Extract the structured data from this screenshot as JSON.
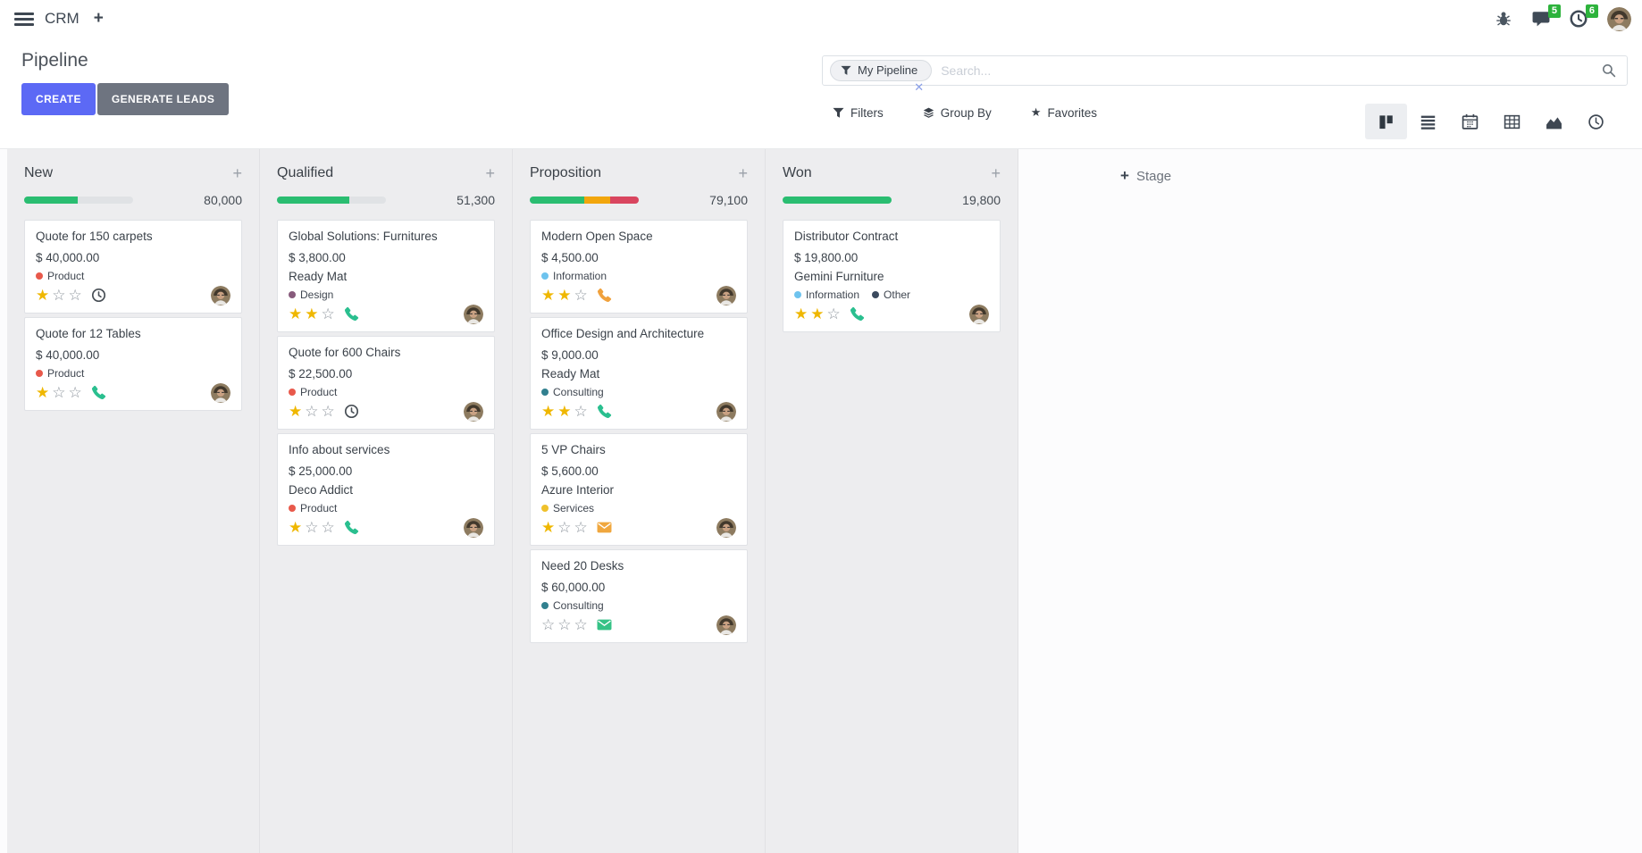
{
  "navbar": {
    "app_name": "CRM",
    "messages_badge": "5",
    "activities_badge": "6"
  },
  "control_panel": {
    "title": "Pipeline",
    "create_button": "CREATE",
    "generate_leads_button": "GENERATE LEADS",
    "search": {
      "facet_label": "My Pipeline",
      "placeholder": "Search...",
      "remove_facet_icon": "✕"
    },
    "filters_label": "Filters",
    "group_by_label": "Group By",
    "favorites_label": "Favorites"
  },
  "view_switcher": [
    "kanban",
    "list",
    "calendar",
    "pivot",
    "graph",
    "activity"
  ],
  "board": {
    "add_stage_label": "Stage",
    "columns": [
      {
        "title": "New",
        "counter": "80,000",
        "progress_segments": [
          {
            "color": "#2abd71",
            "pct": 49
          }
        ],
        "cards": [
          {
            "title": "Quote for 150 carpets",
            "amount": "$ 40,000.00",
            "tags": [
              {
                "label": "Product",
                "color": "#e8594b"
              }
            ],
            "stars": 1,
            "activity": {
              "type": "clock",
              "color": "#495057"
            }
          },
          {
            "title": "Quote for 12 Tables",
            "amount": "$ 40,000.00",
            "tags": [
              {
                "label": "Product",
                "color": "#e8594b"
              }
            ],
            "stars": 1,
            "activity": {
              "type": "phone",
              "color": "#2abf8f"
            }
          }
        ]
      },
      {
        "title": "Qualified",
        "counter": "51,300",
        "progress_segments": [
          {
            "color": "#2abd71",
            "pct": 66
          }
        ],
        "cards": [
          {
            "title": "Global Solutions: Furnitures",
            "amount": "$ 3,800.00",
            "partner": "Ready Mat",
            "tags": [
              {
                "label": "Design",
                "color": "#875a7b"
              }
            ],
            "stars": 2,
            "activity": {
              "type": "phone",
              "color": "#2abf8f"
            }
          },
          {
            "title": "Quote for 600 Chairs",
            "amount": "$ 22,500.00",
            "tags": [
              {
                "label": "Product",
                "color": "#e8594b"
              }
            ],
            "stars": 1,
            "activity": {
              "type": "clock",
              "color": "#495057"
            }
          },
          {
            "title": "Info about services",
            "amount": "$ 25,000.00",
            "partner": "Deco Addict",
            "tags": [
              {
                "label": "Product",
                "color": "#e8594b"
              }
            ],
            "stars": 1,
            "activity": {
              "type": "phone",
              "color": "#2abf8f"
            }
          }
        ]
      },
      {
        "title": "Proposition",
        "counter": "79,100",
        "progress_segments": [
          {
            "color": "#2abd71",
            "pct": 50
          },
          {
            "color": "#f2a60d",
            "pct": 24
          },
          {
            "color": "#d9455f",
            "pct": 26
          }
        ],
        "cards": [
          {
            "title": "Modern Open Space",
            "amount": "$ 4,500.00",
            "tags": [
              {
                "label": "Information",
                "color": "#6ec3ee"
              }
            ],
            "stars": 2,
            "activity": {
              "type": "phone",
              "color": "#f0a13c"
            }
          },
          {
            "title": "Office Design and Architecture",
            "amount": "$ 9,000.00",
            "partner": "Ready Mat",
            "tags": [
              {
                "label": "Consulting",
                "color": "#31808f"
              }
            ],
            "stars": 2,
            "activity": {
              "type": "phone",
              "color": "#2abf8f"
            }
          },
          {
            "title": "5 VP Chairs",
            "amount": "$ 5,600.00",
            "partner": "Azure Interior",
            "tags": [
              {
                "label": "Services",
                "color": "#efc12c"
              }
            ],
            "stars": 1,
            "activity": {
              "type": "mail",
              "color": "#f0a73e"
            }
          },
          {
            "title": "Need 20 Desks",
            "amount": "$ 60,000.00",
            "tags": [
              {
                "label": "Consulting",
                "color": "#31808f"
              }
            ],
            "stars": 0,
            "activity": {
              "type": "mail",
              "color": "#35c286"
            }
          }
        ]
      },
      {
        "title": "Won",
        "counter": "19,800",
        "progress_segments": [
          {
            "color": "#2abd71",
            "pct": 100
          }
        ],
        "cards": [
          {
            "title": "Distributor Contract",
            "amount": "$ 19,800.00",
            "partner": "Gemini Furniture",
            "tags": [
              {
                "label": "Information",
                "color": "#6ec3ee"
              },
              {
                "label": "Other",
                "color": "#3b4a5e"
              }
            ],
            "stars": 2,
            "activity": {
              "type": "phone",
              "color": "#2abf8f"
            }
          }
        ]
      }
    ]
  },
  "icons": {
    "plus": "+",
    "star_filled": "★",
    "star_empty": "☆",
    "favorites_star": "★"
  }
}
